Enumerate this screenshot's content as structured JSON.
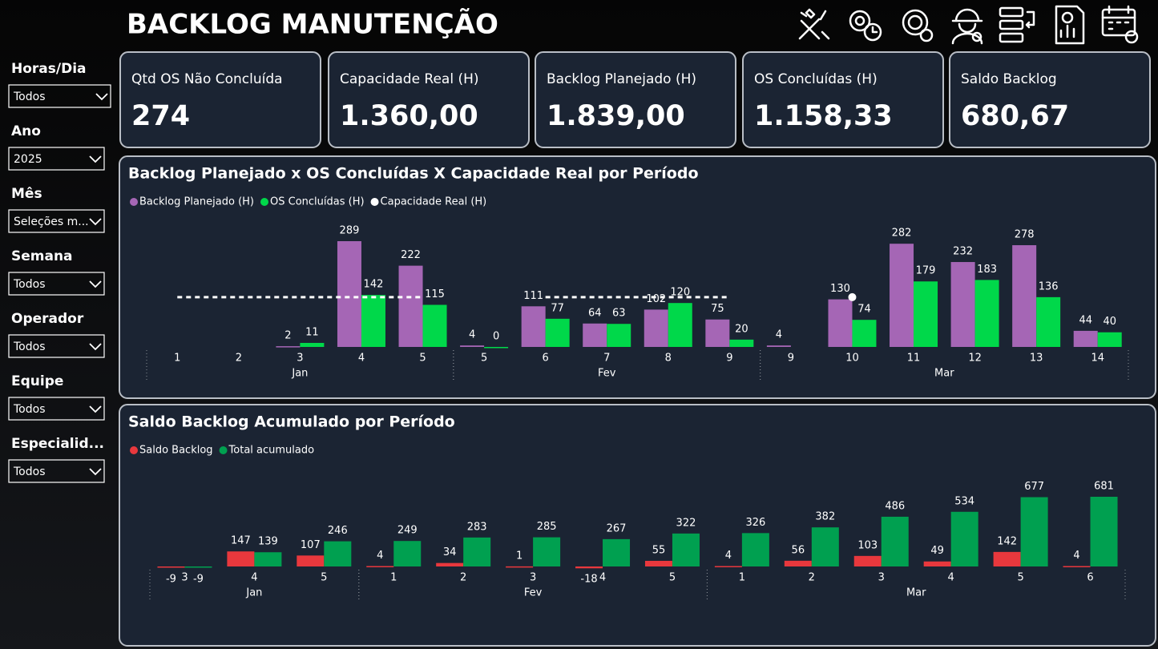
{
  "header": {
    "title": "BACKLOG MANUTENÇÃO"
  },
  "filters": [
    {
      "label": "Horas/Dia",
      "value": "Todos"
    },
    {
      "label": "Ano",
      "value": "2025"
    },
    {
      "label": "Mês",
      "value": "Seleções m..."
    },
    {
      "label": "Semana",
      "value": "Todos"
    },
    {
      "label": "Operador",
      "value": "Todos"
    },
    {
      "label": "Equipe",
      "value": "Todos"
    },
    {
      "label": "Especialid...",
      "value": "Todos"
    }
  ],
  "kpis": [
    {
      "label": "Qtd OS Não Concluída",
      "value": "274"
    },
    {
      "label": "Capacidade Real (H)",
      "value": "1.360,00"
    },
    {
      "label": "Backlog Planejado (H)",
      "value": "1.839,00"
    },
    {
      "label": "OS Concluídas (H)",
      "value": "1.158,33"
    },
    {
      "label": "Saldo Backlog",
      "value": "680,67"
    }
  ],
  "chart_data": [
    {
      "type": "combo",
      "title": "Backlog Planejado x OS Concluídas X Capacidade Real por Período",
      "groups": [
        {
          "label": "Jan",
          "categories": [
            "1",
            "2",
            "3",
            "4",
            "5"
          ]
        },
        {
          "label": "Fev",
          "categories": [
            "5",
            "6",
            "7",
            "8",
            "9"
          ]
        },
        {
          "label": "Mar",
          "categories": [
            "9",
            "10",
            "11",
            "12",
            "13",
            "14"
          ]
        }
      ],
      "series": [
        {
          "name": "Backlog Planejado (H)",
          "kind": "bar",
          "color": "#a566b5",
          "values": [
            null,
            null,
            2,
            289,
            222,
            4,
            111,
            64,
            102,
            75,
            4,
            130,
            282,
            232,
            278,
            44
          ]
        },
        {
          "name": "OS Concluídas (H)",
          "kind": "bar",
          "color": "#00d84a",
          "values": [
            null,
            null,
            11,
            142,
            115,
            0,
            77,
            63,
            120,
            20,
            null,
            74,
            179,
            183,
            136,
            40
          ]
        },
        {
          "name": "Capacidade Real (H)",
          "kind": "line",
          "color": "#ffffff",
          "values": [
            136,
            136,
            136,
            136,
            136,
            null,
            136,
            136,
            136,
            136,
            null,
            136,
            null,
            null,
            null,
            null
          ]
        }
      ]
    },
    {
      "type": "combo",
      "title": "Saldo Backlog Acumulado por Período",
      "groups": [
        {
          "label": "Jan",
          "categories": [
            "3",
            "4",
            "5"
          ]
        },
        {
          "label": "Fev",
          "categories": [
            "1",
            "2",
            "3",
            "4",
            "5"
          ]
        },
        {
          "label": "Mar",
          "categories": [
            "1",
            "2",
            "3",
            "4",
            "5",
            "6"
          ]
        }
      ],
      "series": [
        {
          "name": "Saldo Backlog",
          "kind": "bar",
          "color": "#e8383d",
          "values": [
            -9,
            147,
            107,
            4,
            34,
            1,
            -18,
            55,
            4,
            56,
            103,
            49,
            142,
            4
          ]
        },
        {
          "name": "Total acumulado",
          "kind": "bar",
          "color": "#00a050",
          "values": [
            -9,
            139,
            246,
            249,
            283,
            285,
            267,
            322,
            326,
            382,
            486,
            534,
            677,
            681
          ]
        }
      ]
    }
  ]
}
